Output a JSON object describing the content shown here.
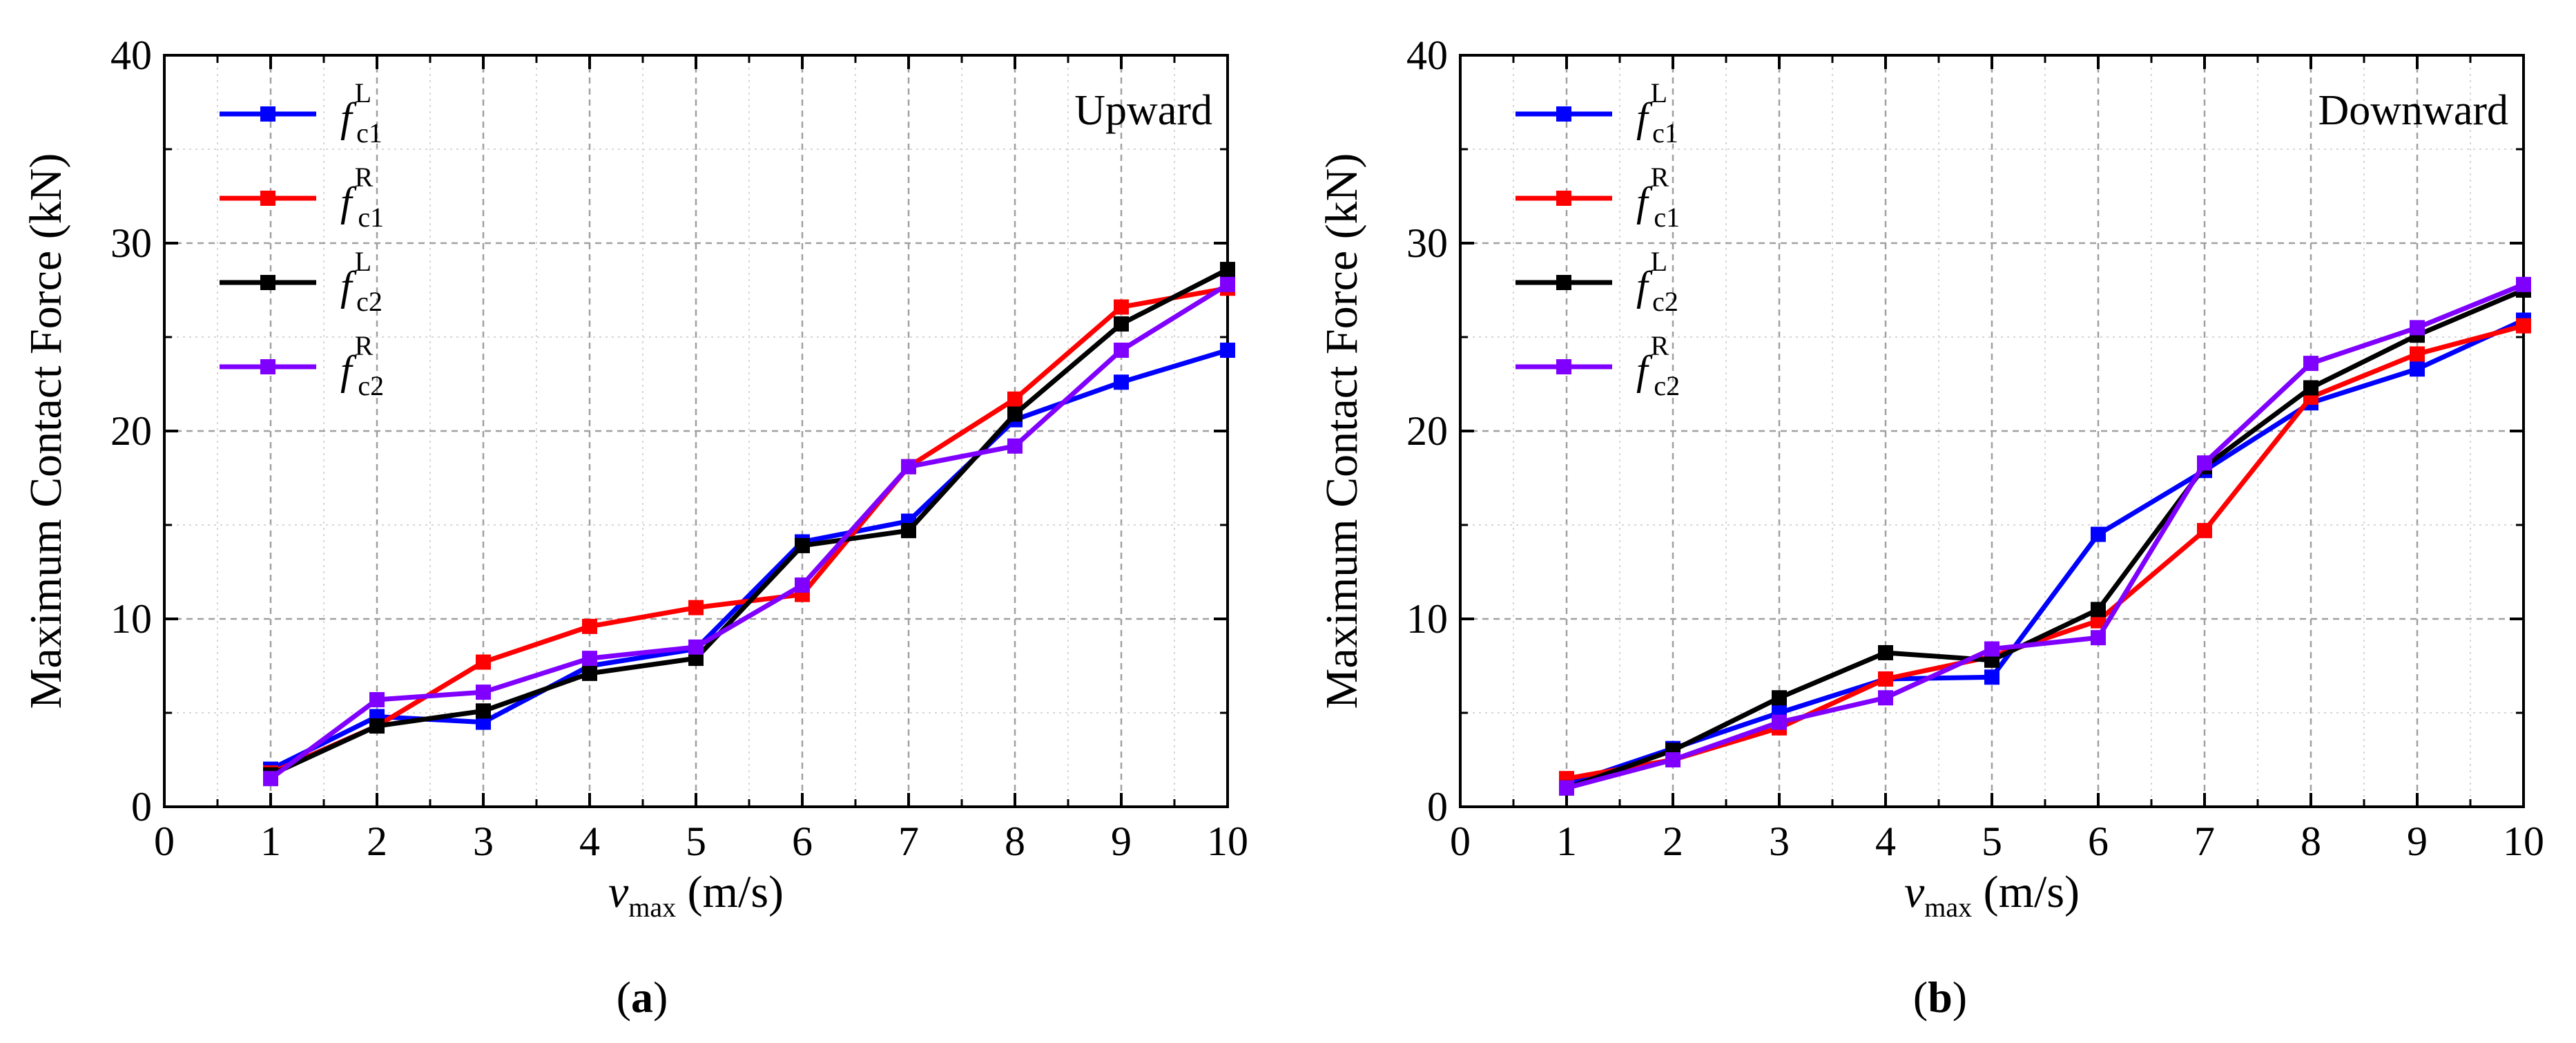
{
  "chart_data": [
    {
      "type": "line",
      "panel_label": "a",
      "annotation": "Upward",
      "xlabel": {
        "symbol": "v",
        "subscript": "max",
        "unit": " (m/s)"
      },
      "ylabel": "Maximum Contact Force (kN)",
      "xlim": [
        0,
        10
      ],
      "ylim": [
        0,
        40
      ],
      "xticks": [
        0,
        1,
        2,
        3,
        4,
        5,
        6,
        7,
        8,
        9,
        10
      ],
      "yticks": [
        0,
        10,
        20,
        30,
        40
      ],
      "grid": true,
      "legend_position": "top-left",
      "x": [
        1,
        2,
        3,
        4,
        5,
        6,
        7,
        8,
        9,
        10
      ],
      "series": [
        {
          "name": "fc1L",
          "symbol": "f",
          "sup": "L",
          "sub": "c1",
          "color": "#0000ff",
          "values": [
            2.0,
            4.8,
            4.5,
            7.5,
            8.4,
            14.1,
            15.2,
            20.6,
            22.6,
            24.3
          ]
        },
        {
          "name": "fc1R",
          "symbol": "f",
          "sup": "R",
          "sub": "c1",
          "color": "#ff0000",
          "values": [
            1.8,
            4.3,
            7.7,
            9.6,
            10.6,
            11.3,
            18.1,
            21.7,
            26.6,
            27.6
          ]
        },
        {
          "name": "fc2L",
          "symbol": "f",
          "sup": "L",
          "sub": "c2",
          "color": "#000000",
          "values": [
            1.7,
            4.3,
            5.1,
            7.1,
            7.9,
            13.9,
            14.7,
            20.9,
            25.7,
            28.6
          ]
        },
        {
          "name": "fc2R",
          "symbol": "f",
          "sup": "R",
          "sub": "c2",
          "color": "#7f00ff",
          "values": [
            1.5,
            5.7,
            6.1,
            7.9,
            8.5,
            11.8,
            18.1,
            19.2,
            24.3,
            27.8
          ]
        }
      ]
    },
    {
      "type": "line",
      "panel_label": "b",
      "annotation": "Downward",
      "xlabel": {
        "symbol": "v",
        "subscript": "max",
        "unit": " (m/s)"
      },
      "ylabel": "Maximum Contact Force (kN)",
      "xlim": [
        0,
        10
      ],
      "ylim": [
        0,
        40
      ],
      "xticks": [
        0,
        1,
        2,
        3,
        4,
        5,
        6,
        7,
        8,
        9,
        10
      ],
      "yticks": [
        0,
        10,
        20,
        30,
        40
      ],
      "grid": true,
      "legend_position": "top-left",
      "x": [
        1,
        2,
        3,
        4,
        5,
        6,
        7,
        8,
        9,
        10
      ],
      "series": [
        {
          "name": "fc1L",
          "symbol": "f",
          "sup": "L",
          "sub": "c1",
          "color": "#0000ff",
          "values": [
            1.2,
            3.1,
            5.0,
            6.8,
            6.9,
            14.5,
            17.9,
            21.5,
            23.3,
            25.9
          ]
        },
        {
          "name": "fc1R",
          "symbol": "f",
          "sup": "R",
          "sub": "c1",
          "color": "#ff0000",
          "values": [
            1.5,
            2.5,
            4.2,
            6.8,
            8.0,
            9.9,
            14.7,
            21.8,
            24.1,
            25.6
          ]
        },
        {
          "name": "fc2L",
          "symbol": "f",
          "sup": "L",
          "sub": "c2",
          "color": "#000000",
          "values": [
            1.0,
            3.0,
            5.8,
            8.2,
            7.8,
            10.5,
            18.1,
            22.3,
            25.1,
            27.5
          ]
        },
        {
          "name": "fc2R",
          "symbol": "f",
          "sup": "R",
          "sub": "c2",
          "color": "#7f00ff",
          "values": [
            1.0,
            2.5,
            4.5,
            5.8,
            8.4,
            9.0,
            18.3,
            23.6,
            25.5,
            27.8
          ]
        }
      ]
    }
  ]
}
